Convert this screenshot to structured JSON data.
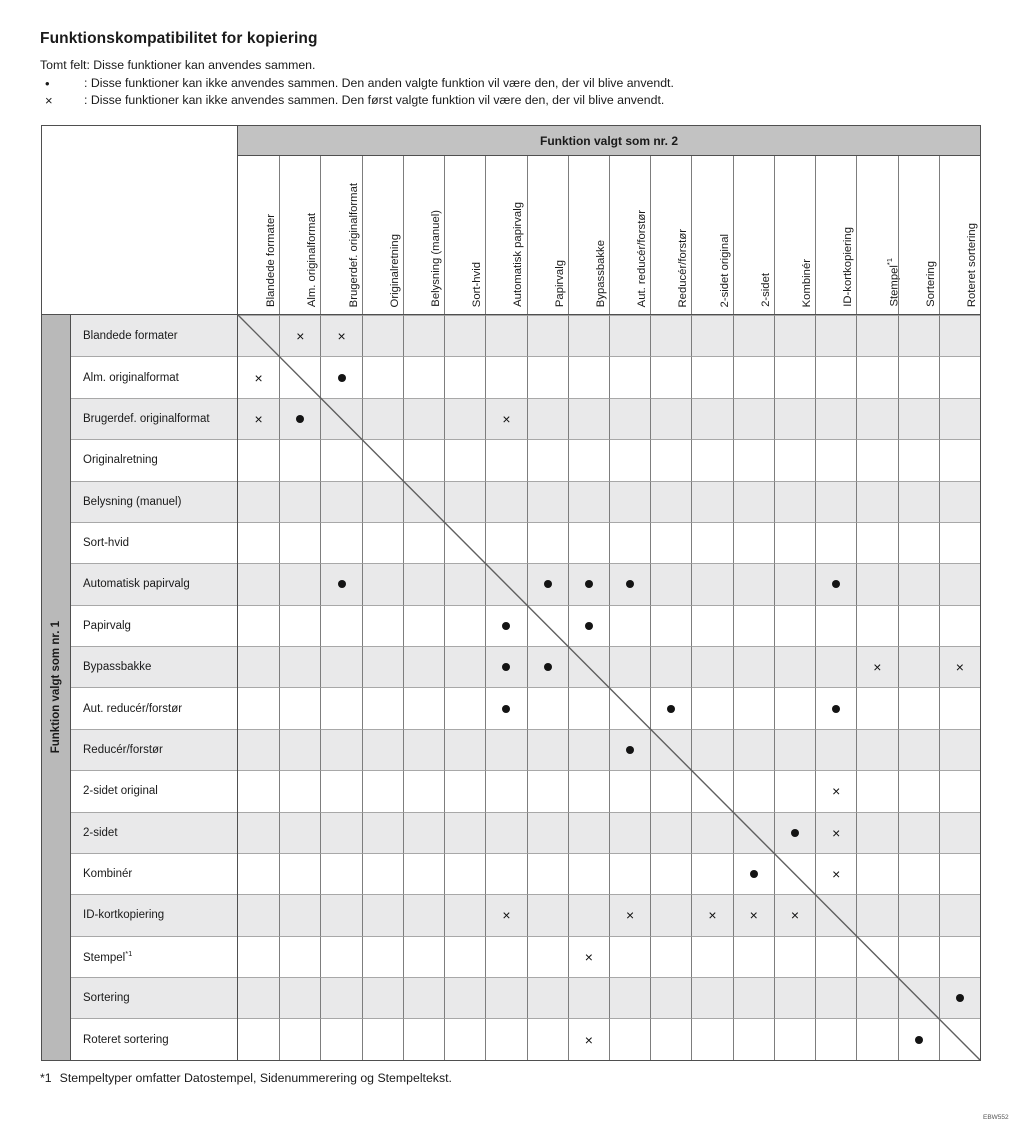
{
  "page": {
    "title": "Funktionskompatibilitet for kopiering",
    "legend": {
      "empty_text": "Tomt felt: Disse funktioner kan anvendes sammen.",
      "dot_symbol": "•",
      "dot_text": ": Disse funktioner kan ikke anvendes sammen. Den anden valgte funktion vil være den, der vil blive anvendt.",
      "x_symbol": "×",
      "x_text": ": Disse funktioner kan ikke anvendes sammen. Den først valgte funktion vil være den, der vil blive anvendt."
    },
    "footnote": {
      "marker": "*1",
      "text": "Stempeltyper omfatter Datostempel, Sidenummerering og Stempeltekst."
    },
    "doc_code": "EBW552"
  },
  "table": {
    "col_axis_title": "Funktion valgt som nr. 2",
    "row_axis_title": "Funktion valgt som nr. 1",
    "functions": [
      {
        "label": "Blandede formater"
      },
      {
        "label": "Alm. originalformat"
      },
      {
        "label": "Brugerdef. originalformat"
      },
      {
        "label": "Originalretning"
      },
      {
        "label": "Belysning (manuel)"
      },
      {
        "label": "Sort-hvid"
      },
      {
        "label": "Automatisk papirvalg"
      },
      {
        "label": "Papirvalg"
      },
      {
        "label": "Bypassbakke"
      },
      {
        "label": "Aut. reducér/forstør"
      },
      {
        "label": "Reducér/forstør"
      },
      {
        "label": "2-sidet original"
      },
      {
        "label": "2-sidet"
      },
      {
        "label": "Kombinér"
      },
      {
        "label": "ID-kortkopiering"
      },
      {
        "label": "Stempel",
        "sup": "*1"
      },
      {
        "label": "Sortering"
      },
      {
        "label": "Roteret sortering"
      }
    ],
    "marks": [
      {
        "r": 1,
        "c": 2,
        "t": "x"
      },
      {
        "r": 1,
        "c": 3,
        "t": "x"
      },
      {
        "r": 2,
        "c": 1,
        "t": "x"
      },
      {
        "r": 2,
        "c": 3,
        "t": "dot"
      },
      {
        "r": 3,
        "c": 1,
        "t": "x"
      },
      {
        "r": 3,
        "c": 2,
        "t": "dot"
      },
      {
        "r": 3,
        "c": 7,
        "t": "x"
      },
      {
        "r": 7,
        "c": 3,
        "t": "dot"
      },
      {
        "r": 7,
        "c": 8,
        "t": "dot"
      },
      {
        "r": 7,
        "c": 9,
        "t": "dot"
      },
      {
        "r": 7,
        "c": 10,
        "t": "dot"
      },
      {
        "r": 7,
        "c": 15,
        "t": "dot"
      },
      {
        "r": 8,
        "c": 7,
        "t": "dot"
      },
      {
        "r": 8,
        "c": 9,
        "t": "dot"
      },
      {
        "r": 9,
        "c": 7,
        "t": "dot"
      },
      {
        "r": 9,
        "c": 8,
        "t": "dot"
      },
      {
        "r": 9,
        "c": 16,
        "t": "x"
      },
      {
        "r": 9,
        "c": 18,
        "t": "x"
      },
      {
        "r": 10,
        "c": 7,
        "t": "dot"
      },
      {
        "r": 10,
        "c": 11,
        "t": "dot"
      },
      {
        "r": 10,
        "c": 15,
        "t": "dot"
      },
      {
        "r": 11,
        "c": 10,
        "t": "dot"
      },
      {
        "r": 12,
        "c": 15,
        "t": "x"
      },
      {
        "r": 13,
        "c": 14,
        "t": "dot"
      },
      {
        "r": 13,
        "c": 15,
        "t": "x"
      },
      {
        "r": 14,
        "c": 13,
        "t": "dot"
      },
      {
        "r": 14,
        "c": 15,
        "t": "x"
      },
      {
        "r": 15,
        "c": 7,
        "t": "x"
      },
      {
        "r": 15,
        "c": 10,
        "t": "x"
      },
      {
        "r": 15,
        "c": 12,
        "t": "x"
      },
      {
        "r": 15,
        "c": 13,
        "t": "x"
      },
      {
        "r": 15,
        "c": 14,
        "t": "x"
      },
      {
        "r": 16,
        "c": 9,
        "t": "x"
      },
      {
        "r": 17,
        "c": 18,
        "t": "dot"
      },
      {
        "r": 18,
        "c": 9,
        "t": "x"
      },
      {
        "r": 18,
        "c": 17,
        "t": "dot"
      }
    ]
  },
  "colors": {
    "col_header_bg": "#c2c2c2",
    "row_header_strip_bg": "#b9b9b9",
    "striped_row_bg": "#e9e9ea",
    "grid_line": "#7d7d7d",
    "outer_border": "#4f4f4f"
  }
}
